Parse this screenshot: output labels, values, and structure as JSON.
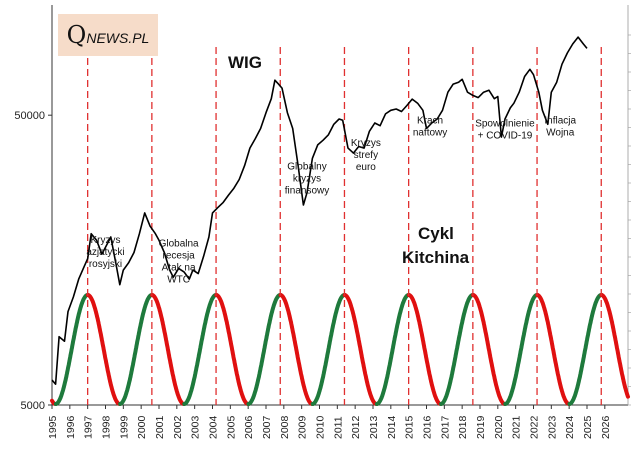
{
  "brand": {
    "initial": "Q",
    "rest": "NEWS.PL"
  },
  "chart_data": {
    "type": "line",
    "title": "WIG",
    "subtitle": "Cykl Kitchina",
    "y_scale": "log",
    "ylim": [
      5000,
      120000
    ],
    "y_ticks": [
      5000,
      50000
    ],
    "y_tick_labels": [
      "5000",
      "50000"
    ],
    "x_range": [
      1995.0,
      2027.3
    ],
    "x_ticks": [
      "1995",
      "1996",
      "1997",
      "1998",
      "1999",
      "2000",
      "2001",
      "2002",
      "2003",
      "2004",
      "2005",
      "2006",
      "2007",
      "2008",
      "2009",
      "2010",
      "2011",
      "2012",
      "2013",
      "2014",
      "2015",
      "2016",
      "2017",
      "2018",
      "2019",
      "2020",
      "2021",
      "2022",
      "2023",
      "2024",
      "2025",
      "2026"
    ],
    "series": [
      {
        "name": "WIG",
        "color": "#000000",
        "points": [
          [
            1995.0,
            6100
          ],
          [
            1995.2,
            5900
          ],
          [
            1995.4,
            8600
          ],
          [
            1995.7,
            8300
          ],
          [
            1995.9,
            10500
          ],
          [
            1996.2,
            11800
          ],
          [
            1996.5,
            13600
          ],
          [
            1996.8,
            15000
          ],
          [
            1997.0,
            16000
          ],
          [
            1997.2,
            19500
          ],
          [
            1997.5,
            18500
          ],
          [
            1997.8,
            16600
          ],
          [
            1998.0,
            17500
          ],
          [
            1998.3,
            19000
          ],
          [
            1998.6,
            15200
          ],
          [
            1998.8,
            13000
          ],
          [
            1999.0,
            14600
          ],
          [
            1999.3,
            15500
          ],
          [
            1999.6,
            16800
          ],
          [
            1999.9,
            19500
          ],
          [
            2000.2,
            23000
          ],
          [
            2000.5,
            20700
          ],
          [
            2000.8,
            19500
          ],
          [
            2001.0,
            18500
          ],
          [
            2001.3,
            16800
          ],
          [
            2001.6,
            14600
          ],
          [
            2001.8,
            13800
          ],
          [
            2002.1,
            14800
          ],
          [
            2002.4,
            14400
          ],
          [
            2002.7,
            13600
          ],
          [
            2002.9,
            14600
          ],
          [
            2003.2,
            14200
          ],
          [
            2003.5,
            16300
          ],
          [
            2003.8,
            19000
          ],
          [
            2004.0,
            23000
          ],
          [
            2004.3,
            24000
          ],
          [
            2004.6,
            25000
          ],
          [
            2004.9,
            26500
          ],
          [
            2005.2,
            28000
          ],
          [
            2005.5,
            30000
          ],
          [
            2005.8,
            33500
          ],
          [
            2006.1,
            38500
          ],
          [
            2006.4,
            41500
          ],
          [
            2006.7,
            45000
          ],
          [
            2007.0,
            51000
          ],
          [
            2007.3,
            57000
          ],
          [
            2007.5,
            66000
          ],
          [
            2007.7,
            64000
          ],
          [
            2007.9,
            62000
          ],
          [
            2008.2,
            51000
          ],
          [
            2008.5,
            45000
          ],
          [
            2008.8,
            33500
          ],
          [
            2009.1,
            24500
          ],
          [
            2009.3,
            27000
          ],
          [
            2009.6,
            35500
          ],
          [
            2009.9,
            39500
          ],
          [
            2010.2,
            41000
          ],
          [
            2010.5,
            42800
          ],
          [
            2010.8,
            46500
          ],
          [
            2011.1,
            48500
          ],
          [
            2011.3,
            48000
          ],
          [
            2011.6,
            38500
          ],
          [
            2011.9,
            37000
          ],
          [
            2012.2,
            39000
          ],
          [
            2012.5,
            38500
          ],
          [
            2012.8,
            44000
          ],
          [
            2013.1,
            47000
          ],
          [
            2013.4,
            46000
          ],
          [
            2013.7,
            50500
          ],
          [
            2014.0,
            52000
          ],
          [
            2014.3,
            52500
          ],
          [
            2014.6,
            51500
          ],
          [
            2014.9,
            54000
          ],
          [
            2015.2,
            56800
          ],
          [
            2015.5,
            55000
          ],
          [
            2015.8,
            52000
          ],
          [
            2016.0,
            45000
          ],
          [
            2016.3,
            47000
          ],
          [
            2016.6,
            48500
          ],
          [
            2016.9,
            52000
          ],
          [
            2017.2,
            60000
          ],
          [
            2017.5,
            64000
          ],
          [
            2017.8,
            65000
          ],
          [
            2018.0,
            66500
          ],
          [
            2018.3,
            60000
          ],
          [
            2018.6,
            58500
          ],
          [
            2018.9,
            57500
          ],
          [
            2019.2,
            60000
          ],
          [
            2019.5,
            61000
          ],
          [
            2019.8,
            57000
          ],
          [
            2020.0,
            58000
          ],
          [
            2020.2,
            42000
          ],
          [
            2020.4,
            48500
          ],
          [
            2020.7,
            53000
          ],
          [
            2020.9,
            55000
          ],
          [
            2021.2,
            60000
          ],
          [
            2021.5,
            68000
          ],
          [
            2021.8,
            72000
          ],
          [
            2022.0,
            69000
          ],
          [
            2022.3,
            60000
          ],
          [
            2022.5,
            52000
          ],
          [
            2022.8,
            46500
          ],
          [
            2023.0,
            60000
          ],
          [
            2023.3,
            65000
          ],
          [
            2023.6,
            75000
          ],
          [
            2023.9,
            82000
          ],
          [
            2024.2,
            88000
          ],
          [
            2024.5,
            93000
          ],
          [
            2024.8,
            88000
          ],
          [
            2025.0,
            85000
          ]
        ]
      },
      {
        "name": "Cykl Kitchina",
        "type": "sine",
        "period_years": 3.6,
        "peaks": [
          1997.0,
          2000.6,
          2004.2,
          2007.8,
          2011.4,
          2015.0,
          2018.6,
          2022.2,
          2025.8
        ],
        "rising_color": "#1e7a3c",
        "falling_color": "#e01010"
      }
    ],
    "cycle_peak_markers": {
      "color": "#e03030",
      "style": "dashed",
      "years": [
        1997.0,
        2000.6,
        2004.2,
        2007.8,
        2011.4,
        2015.0,
        2018.6,
        2022.2,
        2025.8
      ]
    },
    "annotations": [
      {
        "lines": [
          "Kryzys",
          "azjatycki",
          "rosyjski"
        ],
        "x": 1998.0,
        "y": 19000
      },
      {
        "lines": [
          "Globalna",
          "recesja",
          "Atak na",
          "WTC"
        ],
        "x": 2002.1,
        "y": 18500
      },
      {
        "lines": [
          "Globalny",
          "kryzys",
          "finansowy"
        ],
        "x": 2009.3,
        "y": 34000
      },
      {
        "lines": [
          "Kryzys",
          "strefy",
          "euro"
        ],
        "x": 2012.6,
        "y": 41000
      },
      {
        "lines": [
          "Krach",
          "naftowy"
        ],
        "x": 2016.2,
        "y": 49000
      },
      {
        "lines": [
          "Spowolnienie",
          "+ COVID-19"
        ],
        "x": 2020.4,
        "y": 48000
      },
      {
        "lines": [
          "Inflacja",
          "Wojna"
        ],
        "x": 2023.5,
        "y": 49000
      }
    ]
  }
}
